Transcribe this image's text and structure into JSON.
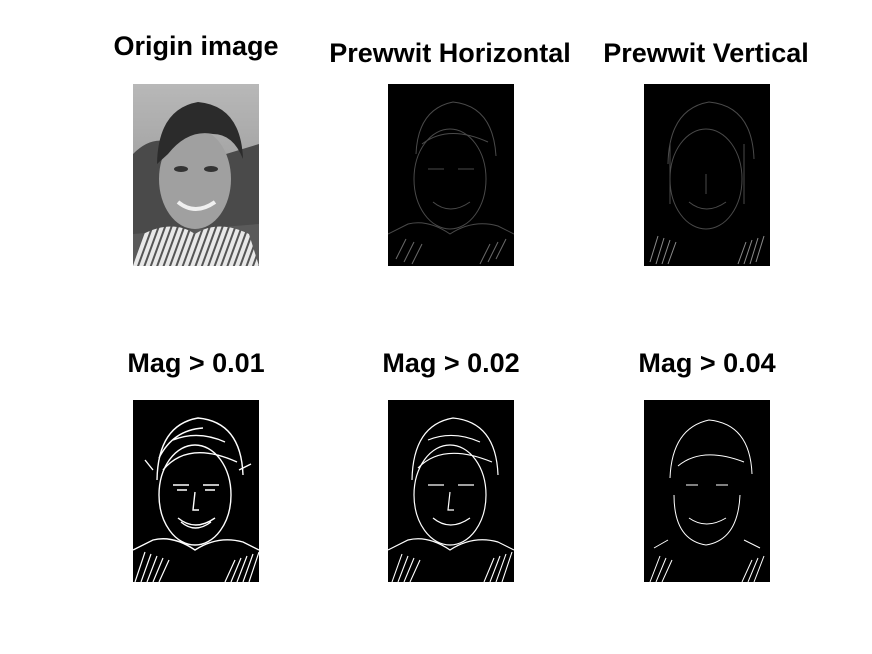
{
  "figure": {
    "panels": [
      {
        "title": "Origin image",
        "kind": "photo"
      },
      {
        "title": "Prewwit Horizontal",
        "kind": "gradient"
      },
      {
        "title": "Prewwit Vertical",
        "kind": "gradient"
      },
      {
        "title": "Mag > 0.01",
        "kind": "threshold"
      },
      {
        "title": "Mag > 0.02",
        "kind": "threshold"
      },
      {
        "title": "Mag > 0.04",
        "kind": "threshold"
      }
    ]
  }
}
